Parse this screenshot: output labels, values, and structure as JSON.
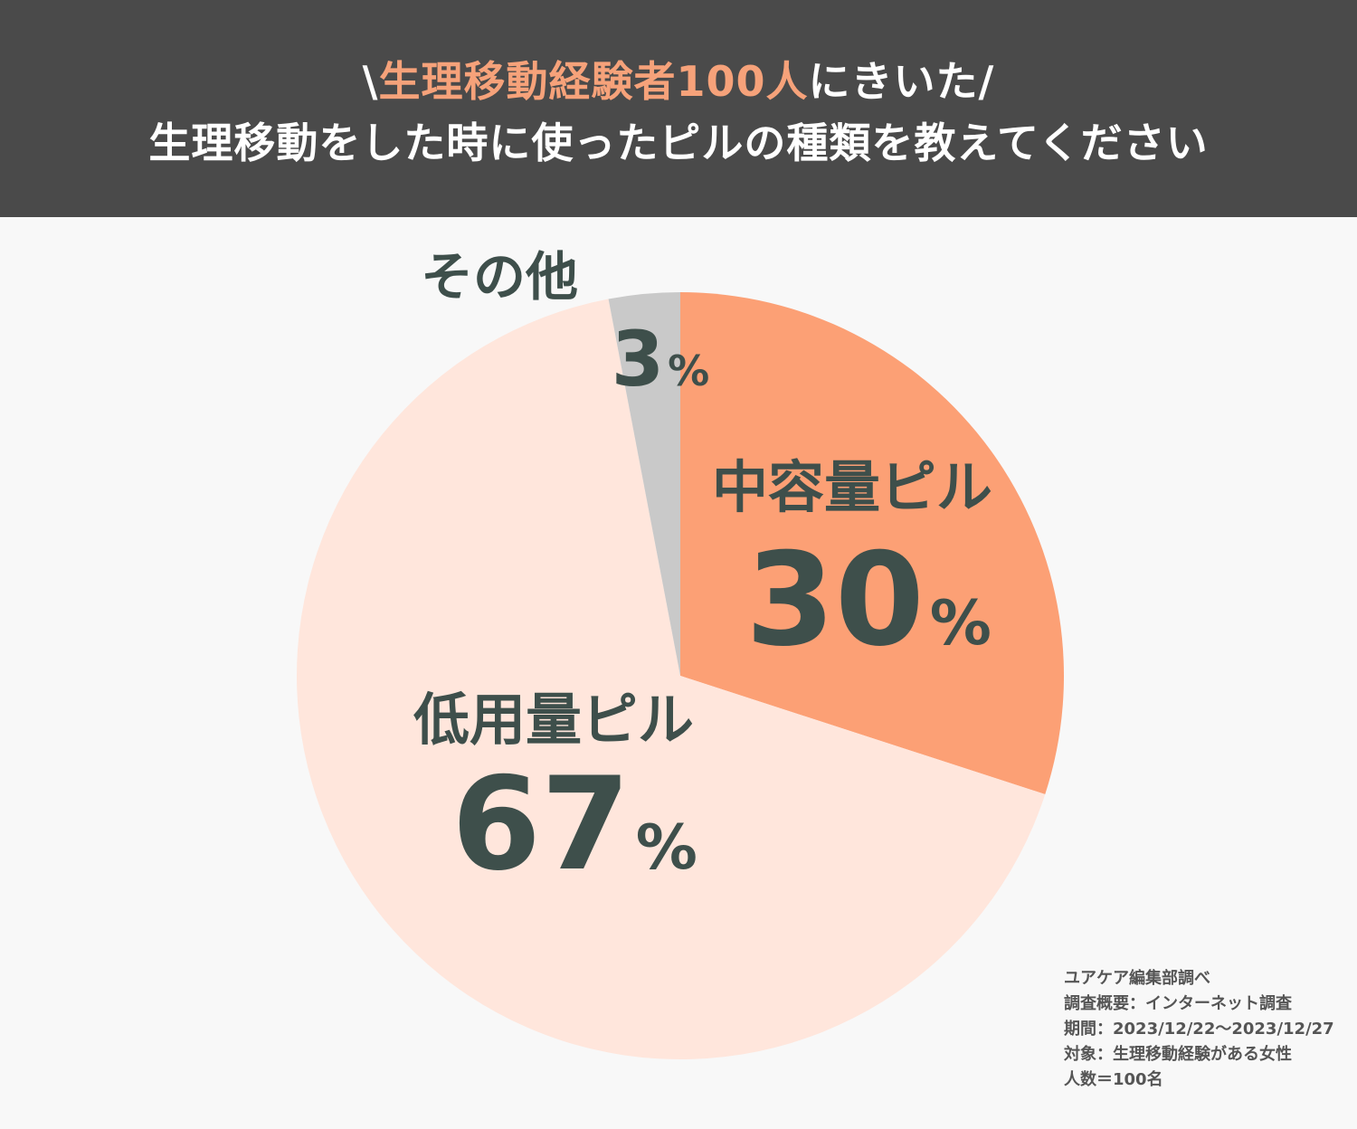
{
  "header": {
    "line1_prefix": "\\",
    "line1_highlight": "生理移動経験者100人",
    "line1_suffix": "にきいた/",
    "line2": "生理移動をした時に使ったピルの種類を教えてください"
  },
  "chart_data": {
    "type": "pie",
    "start_angle": "12 o'clock",
    "direction": "clockwise",
    "slices": [
      {
        "name": "中容量ピル",
        "value": 30,
        "unit": "%",
        "color": "#fca075"
      },
      {
        "name": "低用量ピル",
        "value": 67,
        "unit": "%",
        "color": "#ffe6dc"
      },
      {
        "name": "その他",
        "value": 3,
        "unit": "%",
        "color": "#c9c9c9"
      }
    ],
    "label_color": "#3e4f4b"
  },
  "notes": [
    "ユアケア編集部調べ",
    "調査概要：インターネット調査",
    "期間：2023/12/22～2023/12/27",
    "対象：生理移動経験がある女性",
    "人数＝100名"
  ]
}
